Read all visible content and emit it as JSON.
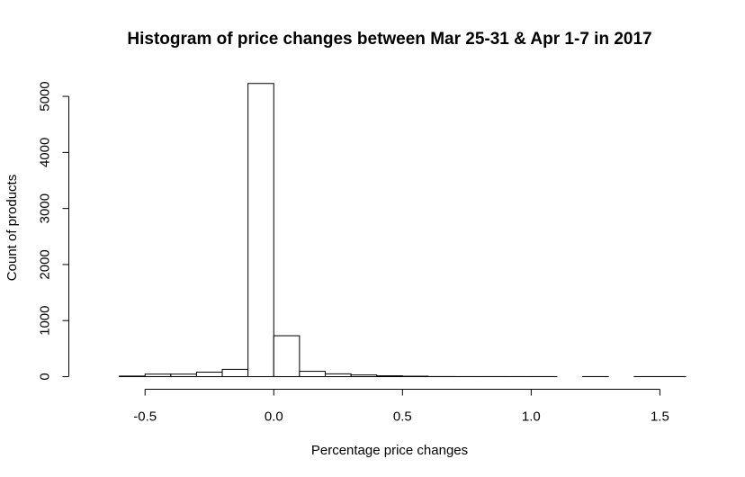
{
  "chart_data": {
    "type": "bar",
    "subtype": "histogram",
    "title": "Histogram of price changes between Mar 25-31 & Apr 1-7 in 2017",
    "xlabel": "Percentage price changes",
    "ylabel": "Count of products",
    "x_ticks": [
      "-0.5",
      "0.0",
      "0.5",
      "1.0",
      "1.5"
    ],
    "y_ticks": [
      "0",
      "1000",
      "2000",
      "3000",
      "4000",
      "5000"
    ],
    "xlim": [
      -0.7,
      1.6
    ],
    "ylim": [
      0,
      5250
    ],
    "bin_width": 0.1,
    "bins": [
      {
        "start": -0.6,
        "end": -0.5,
        "count": 10
      },
      {
        "start": -0.5,
        "end": -0.4,
        "count": 45
      },
      {
        "start": -0.4,
        "end": -0.3,
        "count": 45
      },
      {
        "start": -0.3,
        "end": -0.2,
        "count": 80
      },
      {
        "start": -0.2,
        "end": -0.1,
        "count": 130
      },
      {
        "start": -0.1,
        "end": 0.0,
        "count": 5230
      },
      {
        "start": 0.0,
        "end": 0.1,
        "count": 730
      },
      {
        "start": 0.1,
        "end": 0.2,
        "count": 95
      },
      {
        "start": 0.2,
        "end": 0.3,
        "count": 50
      },
      {
        "start": 0.3,
        "end": 0.4,
        "count": 30
      },
      {
        "start": 0.4,
        "end": 0.5,
        "count": 15
      },
      {
        "start": 0.5,
        "end": 0.6,
        "count": 8
      },
      {
        "start": 0.6,
        "end": 0.7,
        "count": 2
      },
      {
        "start": 0.7,
        "end": 0.8,
        "count": 1
      },
      {
        "start": 0.8,
        "end": 0.9,
        "count": 1
      },
      {
        "start": 0.9,
        "end": 1.0,
        "count": 1
      },
      {
        "start": 1.0,
        "end": 1.1,
        "count": 1
      },
      {
        "start": 1.1,
        "end": 1.2,
        "count": 0
      },
      {
        "start": 1.2,
        "end": 1.3,
        "count": 1
      },
      {
        "start": 1.3,
        "end": 1.4,
        "count": 0
      },
      {
        "start": 1.4,
        "end": 1.5,
        "count": 1
      },
      {
        "start": 1.5,
        "end": 1.6,
        "count": 1
      }
    ],
    "grid": false,
    "legend": "none",
    "bar_fill": "#ffffff",
    "bar_stroke": "#000000"
  }
}
